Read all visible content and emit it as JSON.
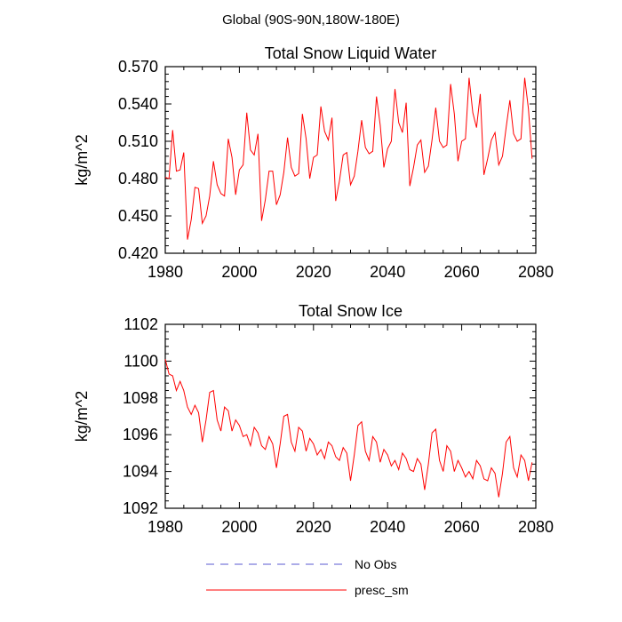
{
  "page_title": "Global (90S-90N,180W-180E)",
  "legend": [
    {
      "label": "No Obs",
      "color": "#5a5ad0",
      "style": "dashed"
    },
    {
      "label": "presc_sm",
      "color": "#ff0000",
      "style": "solid"
    }
  ],
  "chart_data": [
    {
      "type": "line",
      "title": "Total Snow Liquid Water",
      "xlabel": "",
      "ylabel": "kg/m^2",
      "xlim": [
        1980,
        2080
      ],
      "ylim": [
        0.42,
        0.57
      ],
      "xticks": [
        1980,
        2000,
        2020,
        2040,
        2060,
        2080
      ],
      "xtick_labels": [
        "1980",
        "2000",
        "2020",
        "2040",
        "2060",
        "2080"
      ],
      "yticks": [
        0.42,
        0.45,
        0.48,
        0.51,
        0.54,
        0.57
      ],
      "ytick_labels": [
        "0.420",
        "0.450",
        "0.480",
        "0.510",
        "0.540",
        "0.570"
      ],
      "series": [
        {
          "name": "presc_sm",
          "color": "#ff0000",
          "x": [
            1980,
            1981,
            1982,
            1983,
            1984,
            1985,
            1986,
            1987,
            1988,
            1989,
            1990,
            1991,
            1992,
            1993,
            1994,
            1995,
            1996,
            1997,
            1998,
            1999,
            2000,
            2001,
            2002,
            2003,
            2004,
            2005,
            2006,
            2007,
            2008,
            2009,
            2010,
            2011,
            2012,
            2013,
            2014,
            2015,
            2016,
            2017,
            2018,
            2019,
            2020,
            2021,
            2022,
            2023,
            2024,
            2025,
            2026,
            2027,
            2028,
            2029,
            2030,
            2031,
            2032,
            2033,
            2034,
            2035,
            2036,
            2037,
            2038,
            2039,
            2040,
            2041,
            2042,
            2043,
            2044,
            2045,
            2046,
            2047,
            2048,
            2049,
            2050,
            2051,
            2052,
            2053,
            2054,
            2055,
            2056,
            2057,
            2058,
            2059,
            2060,
            2061,
            2062,
            2063,
            2064,
            2065,
            2066,
            2067,
            2068,
            2069,
            2070,
            2071,
            2072,
            2073,
            2074,
            2075,
            2076,
            2077,
            2078,
            2079
          ],
          "values": [
            0.481,
            0.48,
            0.519,
            0.486,
            0.487,
            0.501,
            0.431,
            0.447,
            0.473,
            0.472,
            0.444,
            0.45,
            0.466,
            0.494,
            0.475,
            0.468,
            0.466,
            0.512,
            0.497,
            0.467,
            0.487,
            0.491,
            0.533,
            0.503,
            0.499,
            0.516,
            0.446,
            0.463,
            0.486,
            0.486,
            0.459,
            0.467,
            0.485,
            0.513,
            0.489,
            0.482,
            0.484,
            0.532,
            0.512,
            0.48,
            0.497,
            0.499,
            0.538,
            0.518,
            0.511,
            0.529,
            0.462,
            0.478,
            0.499,
            0.501,
            0.475,
            0.482,
            0.502,
            0.527,
            0.505,
            0.5,
            0.502,
            0.546,
            0.523,
            0.489,
            0.504,
            0.51,
            0.552,
            0.525,
            0.517,
            0.541,
            0.474,
            0.489,
            0.507,
            0.511,
            0.485,
            0.49,
            0.511,
            0.537,
            0.51,
            0.505,
            0.507,
            0.556,
            0.532,
            0.494,
            0.51,
            0.512,
            0.561,
            0.533,
            0.521,
            0.548,
            0.483,
            0.496,
            0.511,
            0.517,
            0.491,
            0.498,
            0.521,
            0.543,
            0.516,
            0.51,
            0.512,
            0.561,
            0.536,
            0.496
          ]
        }
      ]
    },
    {
      "type": "line",
      "title": "Total Snow Ice",
      "xlabel": "",
      "ylabel": "kg/m^2",
      "xlim": [
        1980,
        2080
      ],
      "ylim": [
        1092,
        1102
      ],
      "xticks": [
        1980,
        2000,
        2020,
        2040,
        2060,
        2080
      ],
      "xtick_labels": [
        "1980",
        "2000",
        "2020",
        "2040",
        "2060",
        "2080"
      ],
      "yticks": [
        1092,
        1094,
        1096,
        1098,
        1100,
        1102
      ],
      "ytick_labels": [
        "1092",
        "1094",
        "1096",
        "1098",
        "1100",
        "1102"
      ],
      "series": [
        {
          "name": "presc_sm",
          "color": "#ff0000",
          "x": [
            1980,
            1981,
            1982,
            1983,
            1984,
            1985,
            1986,
            1987,
            1988,
            1989,
            1990,
            1991,
            1992,
            1993,
            1994,
            1995,
            1996,
            1997,
            1998,
            1999,
            2000,
            2001,
            2002,
            2003,
            2004,
            2005,
            2006,
            2007,
            2008,
            2009,
            2010,
            2011,
            2012,
            2013,
            2014,
            2015,
            2016,
            2017,
            2018,
            2019,
            2020,
            2021,
            2022,
            2023,
            2024,
            2025,
            2026,
            2027,
            2028,
            2029,
            2030,
            2031,
            2032,
            2033,
            2034,
            2035,
            2036,
            2037,
            2038,
            2039,
            2040,
            2041,
            2042,
            2043,
            2044,
            2045,
            2046,
            2047,
            2048,
            2049,
            2050,
            2051,
            2052,
            2053,
            2054,
            2055,
            2056,
            2057,
            2058,
            2059,
            2060,
            2061,
            2062,
            2063,
            2064,
            2065,
            2066,
            2067,
            2068,
            2069,
            2070,
            2071,
            2072,
            2073,
            2074,
            2075,
            2076,
            2077,
            2078,
            2079
          ],
          "values": [
            1100.1,
            1099.3,
            1099.2,
            1098.4,
            1098.9,
            1098.4,
            1097.5,
            1097.1,
            1097.6,
            1097.2,
            1095.6,
            1096.8,
            1098.3,
            1098.4,
            1096.8,
            1096.2,
            1097.5,
            1097.3,
            1096.2,
            1096.8,
            1096.5,
            1095.9,
            1096.0,
            1095.4,
            1096.4,
            1096.1,
            1095.4,
            1095.2,
            1095.9,
            1095.5,
            1094.2,
            1095.5,
            1097.0,
            1097.1,
            1095.6,
            1095.1,
            1096.4,
            1096.2,
            1095.1,
            1095.8,
            1095.5,
            1094.9,
            1095.2,
            1094.7,
            1095.6,
            1095.4,
            1094.8,
            1094.6,
            1095.3,
            1095.0,
            1093.5,
            1094.9,
            1096.5,
            1096.7,
            1095.1,
            1094.6,
            1095.9,
            1095.6,
            1094.5,
            1095.2,
            1094.9,
            1094.3,
            1094.6,
            1094.1,
            1095.0,
            1094.7,
            1094.1,
            1094.0,
            1094.7,
            1094.4,
            1093.0,
            1094.4,
            1096.1,
            1096.3,
            1094.6,
            1094.0,
            1095.4,
            1095.1,
            1094.0,
            1094.6,
            1094.2,
            1093.7,
            1094.0,
            1093.6,
            1094.6,
            1094.3,
            1093.6,
            1093.5,
            1094.2,
            1093.9,
            1092.6,
            1093.9,
            1095.6,
            1095.9,
            1094.2,
            1093.7,
            1094.9,
            1094.6,
            1093.5,
            1094.5
          ]
        }
      ]
    }
  ]
}
